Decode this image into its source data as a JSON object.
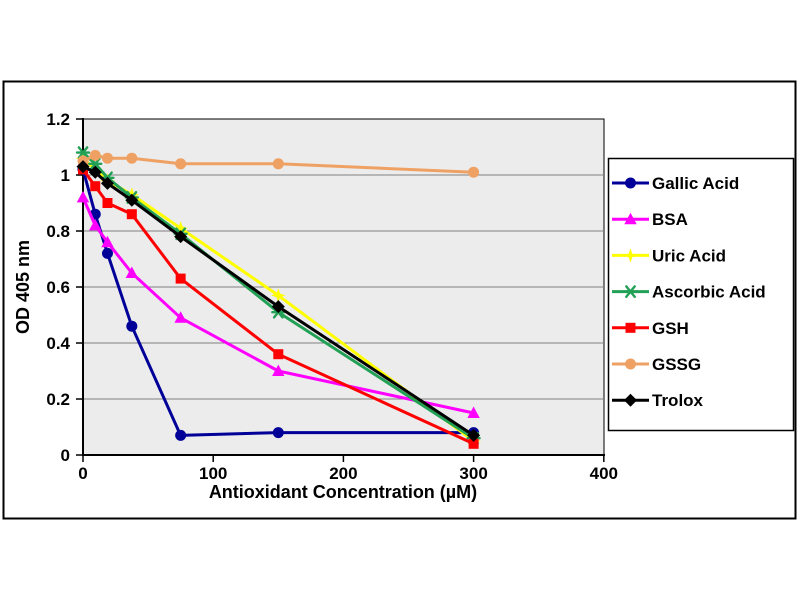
{
  "figure": {
    "background": "#ffffff",
    "outer_border_color": "#000000",
    "plot_background": "#ececec",
    "gridline_color": "#7f7f7f",
    "axis_color": "#000000"
  },
  "chart_data": {
    "type": "line",
    "title": "",
    "xlabel": "Antioxidant Concentration (µM)",
    "ylabel": "OD 405 nm",
    "xlim": [
      0,
      400
    ],
    "ylim": [
      0,
      1.2
    ],
    "x_ticks": [
      0,
      100,
      200,
      300,
      400
    ],
    "y_ticks": [
      "0",
      "0.2",
      "0.4",
      "0.6",
      "0.8",
      "1",
      "1.2"
    ],
    "y_tick_values": [
      0,
      0.2,
      0.4,
      0.6,
      0.8,
      1,
      1.2
    ],
    "grid": "horizontal",
    "legend_position": "right-outside",
    "x": [
      0,
      9.4,
      18.8,
      37.5,
      75,
      150,
      300
    ],
    "series": [
      {
        "name": "Gallic Acid",
        "color": "#000099",
        "marker": "circle",
        "values": [
          1.02,
          0.86,
          0.72,
          0.46,
          0.07,
          0.08,
          0.08
        ]
      },
      {
        "name": "BSA",
        "color": "#ff00ff",
        "marker": "triangle",
        "values": [
          0.92,
          0.82,
          0.76,
          0.65,
          0.49,
          0.3,
          0.15
        ]
      },
      {
        "name": "Uric Acid",
        "color": "#ffff00",
        "marker": "star",
        "values": [
          1.06,
          1.02,
          0.98,
          0.93,
          0.81,
          0.57,
          0.05
        ]
      },
      {
        "name": "Ascorbic Acid",
        "color": "#22a055",
        "marker": "asterisk",
        "values": [
          1.08,
          1.04,
          0.99,
          0.92,
          0.79,
          0.51,
          0.06
        ]
      },
      {
        "name": "GSH",
        "color": "#ff0000",
        "marker": "square",
        "values": [
          1.02,
          0.96,
          0.9,
          0.86,
          0.63,
          0.36,
          0.04
        ]
      },
      {
        "name": "GSSG",
        "color": "#efa164",
        "marker": "circle",
        "values": [
          1.05,
          1.07,
          1.06,
          1.06,
          1.04,
          1.04,
          1.01
        ]
      },
      {
        "name": "Trolox",
        "color": "#000000",
        "marker": "diamond",
        "values": [
          1.03,
          1.01,
          0.97,
          0.91,
          0.78,
          0.53,
          0.07
        ]
      }
    ]
  }
}
